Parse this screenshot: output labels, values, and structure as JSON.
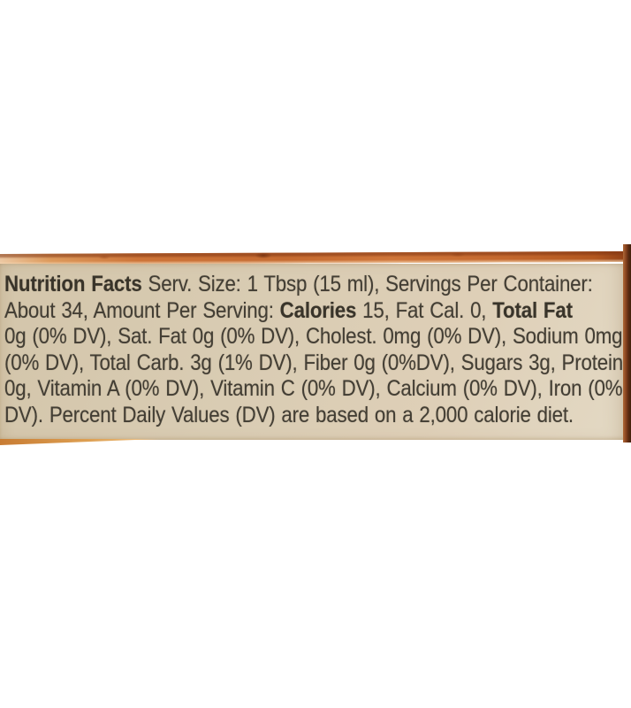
{
  "colors": {
    "page_background": "#ffffff",
    "label_background": "#d9ccb3",
    "text": "#433e34",
    "liquid_orange": "#c56a30",
    "bottle_edge_dark_brown": "#40200c"
  },
  "label": {
    "lines": [
      {
        "segments": [
          {
            "text": "Nutrition Facts",
            "bold": true
          },
          {
            "text": " Serv. Size: 1 Tbsp (15 ml), Servings Per Container:",
            "bold": false
          }
        ]
      },
      {
        "segments": [
          {
            "text": "About 34, Amount Per Serving: ",
            "bold": false
          },
          {
            "text": "Calories",
            "bold": true
          },
          {
            "text": " 15, Fat Cal. 0, ",
            "bold": false
          },
          {
            "text": "Total Fat",
            "bold": true
          }
        ]
      },
      {
        "segments": [
          {
            "text": "0g (0% DV), Sat. Fat 0g (0% DV), Cholest. 0mg (0% DV), Sodium 0mg",
            "bold": false
          }
        ]
      },
      {
        "segments": [
          {
            "text": "(0% DV), Total Carb. 3g (1% DV), Fiber 0g (0%DV), Sugars 3g, Protein",
            "bold": false
          }
        ]
      },
      {
        "segments": [
          {
            "text": "0g, Vitamin A (0% DV), Vitamin C (0% DV), Calcium (0% DV), Iron (0%",
            "bold": false
          }
        ]
      },
      {
        "segments": [
          {
            "text": "DV). Percent Daily Values (DV) are based on a 2,000 calorie diet.",
            "bold": false
          }
        ]
      }
    ]
  }
}
